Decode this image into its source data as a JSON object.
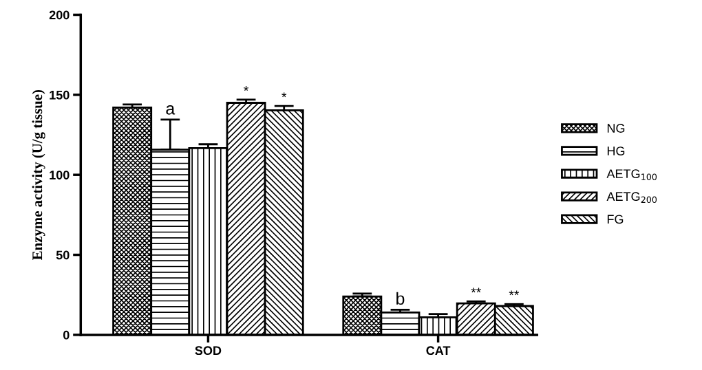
{
  "chart_data": {
    "type": "bar",
    "ylabel": "Enzyme activity (U/g tissue)",
    "categories": [
      "SOD",
      "CAT"
    ],
    "series": [
      {
        "name": "NG",
        "color": "#000000",
        "values": [
          142,
          24
        ],
        "errors": [
          [
            142,
            144
          ],
          [
            24,
            25.8
          ]
        ],
        "value_labels": [
          null,
          null
        ]
      },
      {
        "name": "HG",
        "color": "#000000",
        "values": [
          115.7,
          14
        ],
        "errors": [
          [
            115.7,
            134.5
          ],
          [
            14,
            15.7
          ]
        ],
        "value_labels": [
          "a",
          "b"
        ]
      },
      {
        "name": "AETG$_{100}$",
        "color": "#000000",
        "values": [
          116.7,
          11
        ],
        "errors": [
          [
            116.7,
            119.1
          ],
          [
            11,
            13
          ]
        ],
        "value_labels": [
          null,
          null
        ]
      },
      {
        "name": "AETG$_{200}$",
        "color": "#000000",
        "values": [
          145,
          19.7
        ],
        "errors": [
          [
            145,
            147
          ],
          [
            19.7,
            20.9
          ]
        ],
        "value_labels": [
          "*",
          "**"
        ]
      },
      {
        "name": "FG",
        "color": "#000000",
        "values": [
          140.3,
          18
        ],
        "errors": [
          [
            140.3,
            143
          ],
          [
            18,
            19.2
          ]
        ],
        "value_labels": [
          "*",
          "**"
        ]
      }
    ],
    "ylim": [
      0,
      200
    ],
    "yticks": [
      0,
      50,
      100,
      150,
      200
    ],
    "grid": false,
    "legend": "right"
  }
}
